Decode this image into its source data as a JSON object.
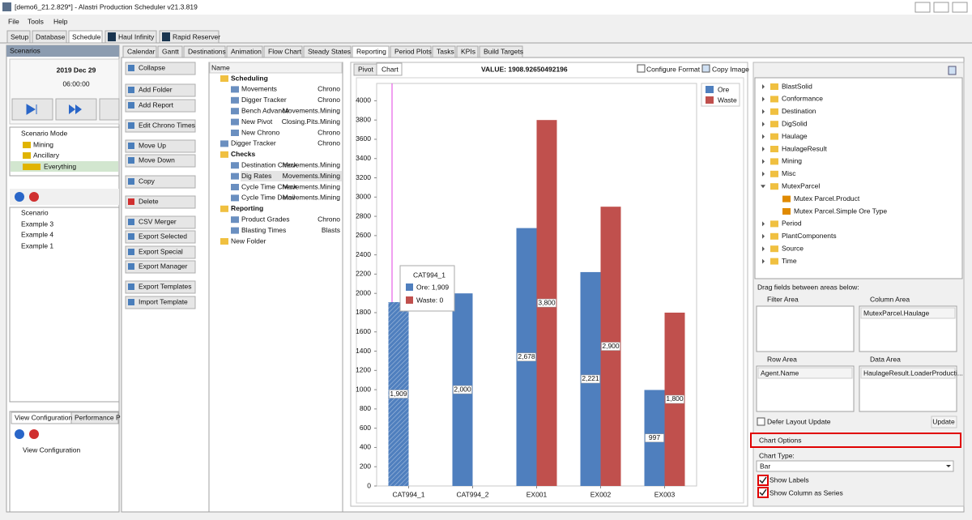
{
  "window": {
    "title": "[demo6_21.2.829*] - Alastri Production Scheduler v21.3.819"
  },
  "menu": [
    "File",
    "Tools",
    "Help"
  ],
  "main_tabs": [
    "Setup",
    "Database",
    "Schedule",
    "Haul Infinity",
    "Rapid Reserver"
  ],
  "scenarios": {
    "header": "Scenarios",
    "date": "2019 Dec 29",
    "time": "06:00:00",
    "mode_header": "Scenario Mode",
    "modes": [
      "Mining",
      "Ancillary",
      "Everything"
    ],
    "list_header": "Scenario",
    "list": [
      "Example 3",
      "Example 4",
      "Example 1"
    ]
  },
  "view_config": {
    "tabs": [
      "View Configuration",
      "Performance P"
    ],
    "header": "View Configuration"
  },
  "report_tabs": [
    "Calendar",
    "Gantt",
    "Destinations",
    "Animation",
    "Flow Chart",
    "Steady States",
    "Reporting",
    "Period Plots",
    "Tasks",
    "KPIs",
    "Build Targets"
  ],
  "buttons": [
    "Collapse",
    "Add Folder",
    "Add Report",
    "Edit Chrono Times",
    "Move Up",
    "Move Down",
    "Copy",
    "Delete",
    "CSV Merger",
    "Export Selected",
    "Export Special",
    "Export Manager",
    "Export Templates",
    "Import Template"
  ],
  "tree": {
    "header": "Name",
    "items": [
      {
        "label": "Scheduling"
      },
      {
        "label": "Movements",
        "note": "Chrono"
      },
      {
        "label": "Digger Tracker",
        "note": "Chrono"
      },
      {
        "label": "Bench Advance",
        "note": "Movements.Mining"
      },
      {
        "label": "New Pivot",
        "note": "Closing.Pits.Mining"
      },
      {
        "label": "New Chrono",
        "note": "Chrono"
      },
      {
        "label": "Digger Tracker",
        "note": "Chrono"
      },
      {
        "label": "Checks"
      },
      {
        "label": "Destination Check",
        "note": "Movements.Mining"
      },
      {
        "label": "Dig Rates",
        "note": "Movements.Mining"
      },
      {
        "label": "Cycle Time Check",
        "note": "Movements.Mining"
      },
      {
        "label": "Cycle Time Detail",
        "note": "Movements.Mining"
      },
      {
        "label": "Reporting"
      },
      {
        "label": "Product Grades",
        "note": "Chrono"
      },
      {
        "label": "Blasting Times",
        "note": "Blasts"
      },
      {
        "label": "New Folder"
      }
    ]
  },
  "chart_panel": {
    "tabs": [
      "Pivot",
      "Chart"
    ],
    "value_label": "VALUE: 1908.92650492196",
    "configure": "Configure Format",
    "copy": "Copy Image"
  },
  "chart_data": {
    "type": "bar",
    "categories": [
      "CAT994_1",
      "CAT994_2",
      "EX001",
      "EX002",
      "EX003"
    ],
    "series": [
      {
        "name": "Ore",
        "color": "#4f7fbe",
        "values": [
          1909,
          2000,
          2678,
          2221,
          997
        ],
        "value_labels": [
          "1,909",
          "2,000",
          "2,678",
          "2,221",
          "997"
        ]
      },
      {
        "name": "Waste",
        "color": "#c0504d",
        "values": [
          0,
          null,
          3800,
          2900,
          1800
        ],
        "value_labels": [
          null,
          null,
          "3,800",
          "2,900",
          "1,800"
        ]
      }
    ],
    "ylim": [
      0,
      4180
    ],
    "yticks": [
      0,
      200,
      400,
      600,
      800,
      1000,
      1200,
      1400,
      1600,
      1800,
      2000,
      2200,
      2400,
      2600,
      2800,
      3000,
      3200,
      3400,
      3600,
      3800,
      4000
    ],
    "grid": false
  },
  "tooltip": {
    "title": "CAT994_1",
    "lines": [
      "Ore: 1,909",
      "Waste: 0"
    ]
  },
  "fields": [
    {
      "label": "BlastSolid"
    },
    {
      "label": "Conformance"
    },
    {
      "label": "Destination"
    },
    {
      "label": "DigSolid"
    },
    {
      "label": "Haulage"
    },
    {
      "label": "HaulageResult"
    },
    {
      "label": "Mining"
    },
    {
      "label": "Misc"
    },
    {
      "label": "MutexParcel"
    },
    {
      "label": "Mutex Parcel.Product"
    },
    {
      "label": "Mutex Parcel.Simple Ore Type"
    },
    {
      "label": "Period"
    },
    {
      "label": "PlantComponents"
    },
    {
      "label": "Source"
    },
    {
      "label": "Time"
    }
  ],
  "pivot": {
    "hint": "Drag fields between areas below:",
    "filter_area": "Filter Area",
    "column_area": "Column Area",
    "column_field": "MutexParcel.Haulage",
    "row_area": "Row Area",
    "row_field": "Agent.Name",
    "data_area": "Data Area",
    "data_field": "HaulageResult.LoaderProducti...",
    "defer": "Defer Layout Update",
    "update": "Update"
  },
  "chart_options": {
    "header": "Chart Options",
    "type_label": "Chart Type:",
    "type": "Bar",
    "show_labels": "Show Labels",
    "show_column": "Show Column as Series"
  }
}
